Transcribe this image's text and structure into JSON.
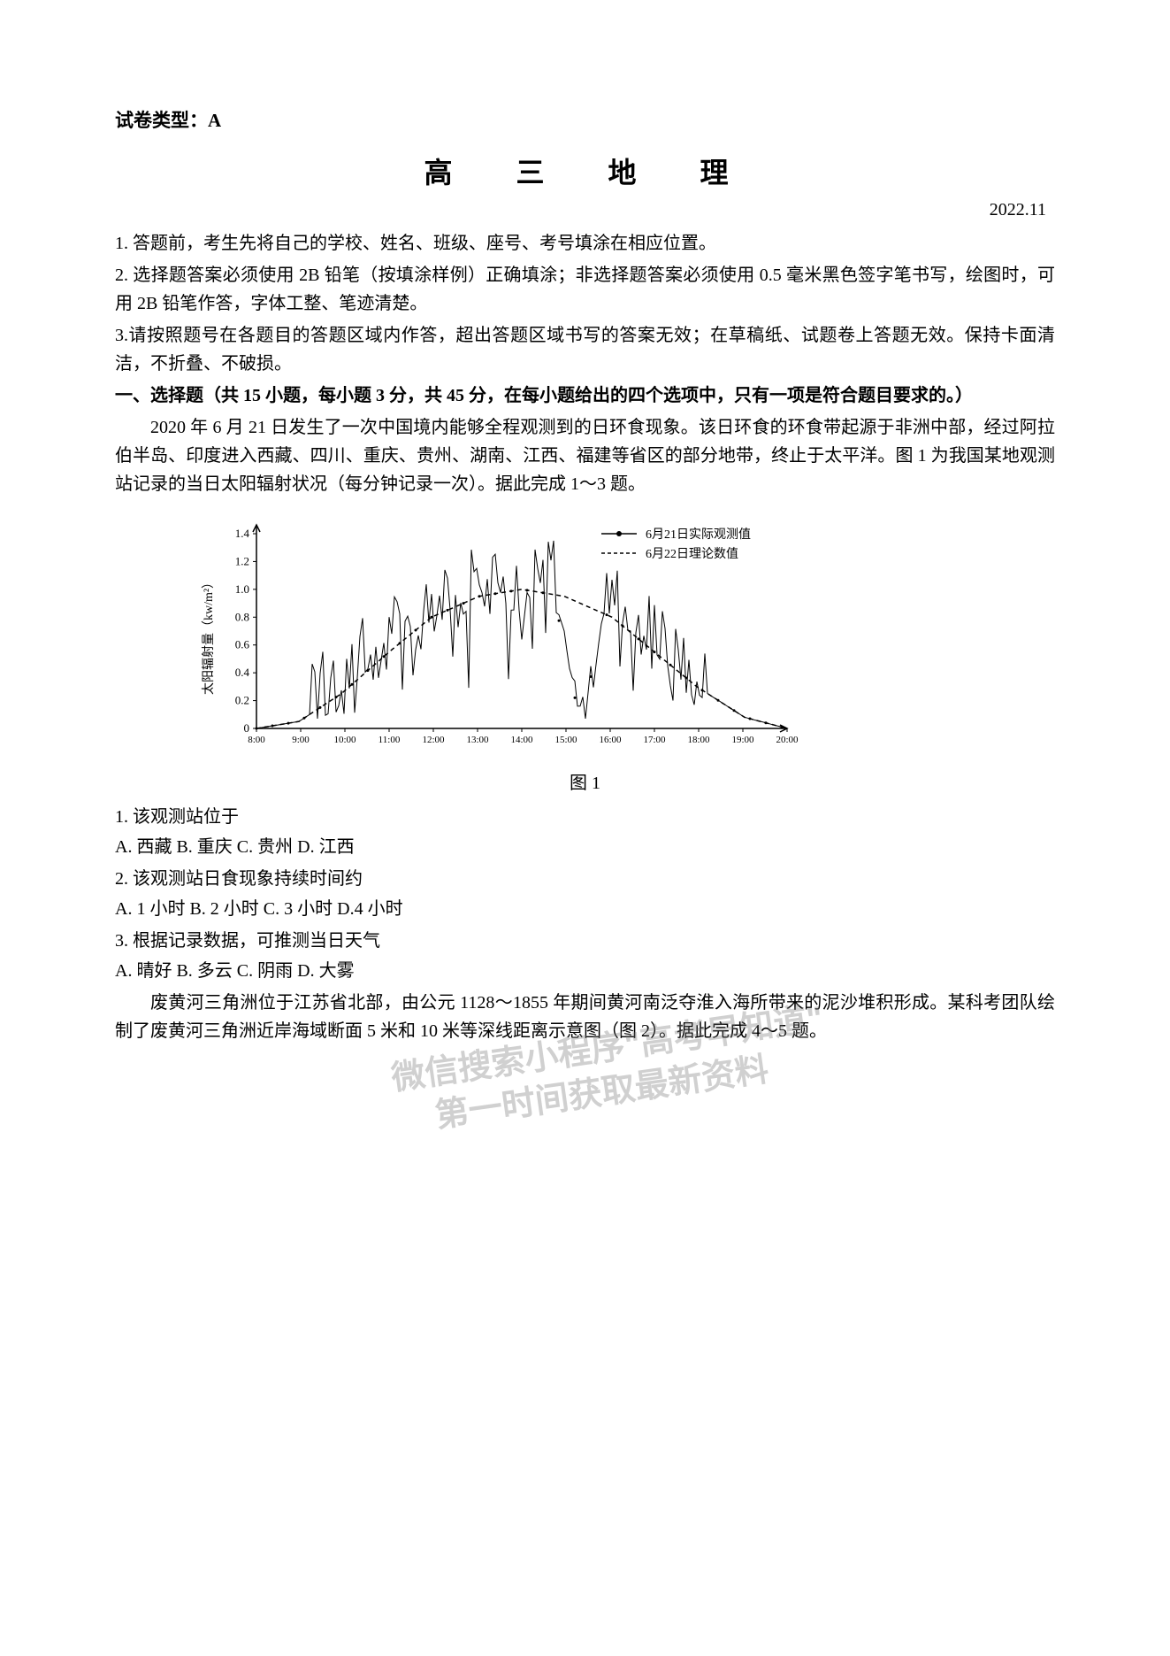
{
  "paper_type": "试卷类型：A",
  "title": "高　三　地　理",
  "date": "2022.11",
  "instructions": [
    "1. 答题前，考生先将自己的学校、姓名、班级、座号、考号填涂在相应位置。",
    "2. 选择题答案必须使用 2B 铅笔（按填涂样例）正确填涂；非选择题答案必须使用 0.5 毫米黑色签字笔书写，绘图时，可用 2B 铅笔作答，字体工整、笔迹清楚。",
    "3.请按照题号在各题目的答题区域内作答，超出答题区域书写的答案无效；在草稿纸、试题卷上答题无效。保持卡面清洁，不折叠、不破损。"
  ],
  "section_header": "一、选择题（共 15 小题，每小题 3 分，共 45 分，在每小题给出的四个选项中，只有一项是符合题目要求的。）",
  "passage1": "2020 年 6 月 21 日发生了一次中国境内能够全程观测到的日环食现象。该日环食的环食带起源于非洲中部，经过阿拉伯半岛、印度进入西藏、四川、重庆、贵州、湖南、江西、福建等省区的部分地带，终止于太平洋。图 1 为我国某地观测站记录的当日太阳辐射状况（每分钟记录一次）。据此完成 1～3 题。",
  "chart": {
    "type": "line",
    "y_label": "太阳辐射量（kw/m²）",
    "y_ticks": [
      0,
      0.2,
      0.4,
      0.6,
      0.8,
      1.0,
      1.2,
      1.4
    ],
    "x_ticks": [
      "8:00",
      "9:00",
      "10:00",
      "11:00",
      "12:00",
      "13:00",
      "14:00",
      "15:00",
      "16:00",
      "17:00",
      "18:00",
      "19:00",
      "20:00"
    ],
    "legend": [
      {
        "label": "6月21日实际观测值",
        "marker": "solid-dot"
      },
      {
        "label": "6月22日理论数值",
        "marker": "dashed"
      }
    ],
    "theoretical_curve": [
      {
        "x": 0,
        "y": 0
      },
      {
        "x": 8,
        "y": 0.05
      },
      {
        "x": 16,
        "y": 0.25
      },
      {
        "x": 25,
        "y": 0.55
      },
      {
        "x": 33,
        "y": 0.8
      },
      {
        "x": 42,
        "y": 0.95
      },
      {
        "x": 50,
        "y": 1.0
      },
      {
        "x": 58,
        "y": 0.95
      },
      {
        "x": 67,
        "y": 0.8
      },
      {
        "x": 75,
        "y": 0.55
      },
      {
        "x": 83,
        "y": 0.3
      },
      {
        "x": 92,
        "y": 0.08
      },
      {
        "x": 100,
        "y": 0
      }
    ],
    "observed_data_pattern": "highly-variable-noisy",
    "caption": "图 1",
    "colors": {
      "axis": "#000000",
      "line": "#000000",
      "background": "#ffffff"
    },
    "font_size": 13
  },
  "questions": [
    {
      "num": "1.",
      "text": "该观测站位于"
    },
    {
      "opts": "A. 西藏 B. 重庆 C. 贵州 D. 江西"
    },
    {
      "num": "2.",
      "text": "该观测站日食现象持续时间约"
    },
    {
      "opts": "A. 1 小时 B. 2 小时 C. 3 小时 D.4 小时"
    },
    {
      "num": "3.",
      "text": "根据记录数据，可推测当日天气"
    },
    {
      "opts": "A. 晴好 B. 多云 C. 阴雨 D. 大雾"
    }
  ],
  "passage2": "废黄河三角洲位于江苏省北部，由公元 1128～1855 年期间黄河南泛夺淮入海所带来的泥沙堆积形成。某科考团队绘制了废黄河三角洲近岸海域断面 5 米和 10 米等深线距离示意图（图 2）。据此完成 4～5 题。",
  "watermark": {
    "line1": "微信搜索小程序\"高考早知道\"",
    "line2": "第一时间获取最新资料"
  }
}
